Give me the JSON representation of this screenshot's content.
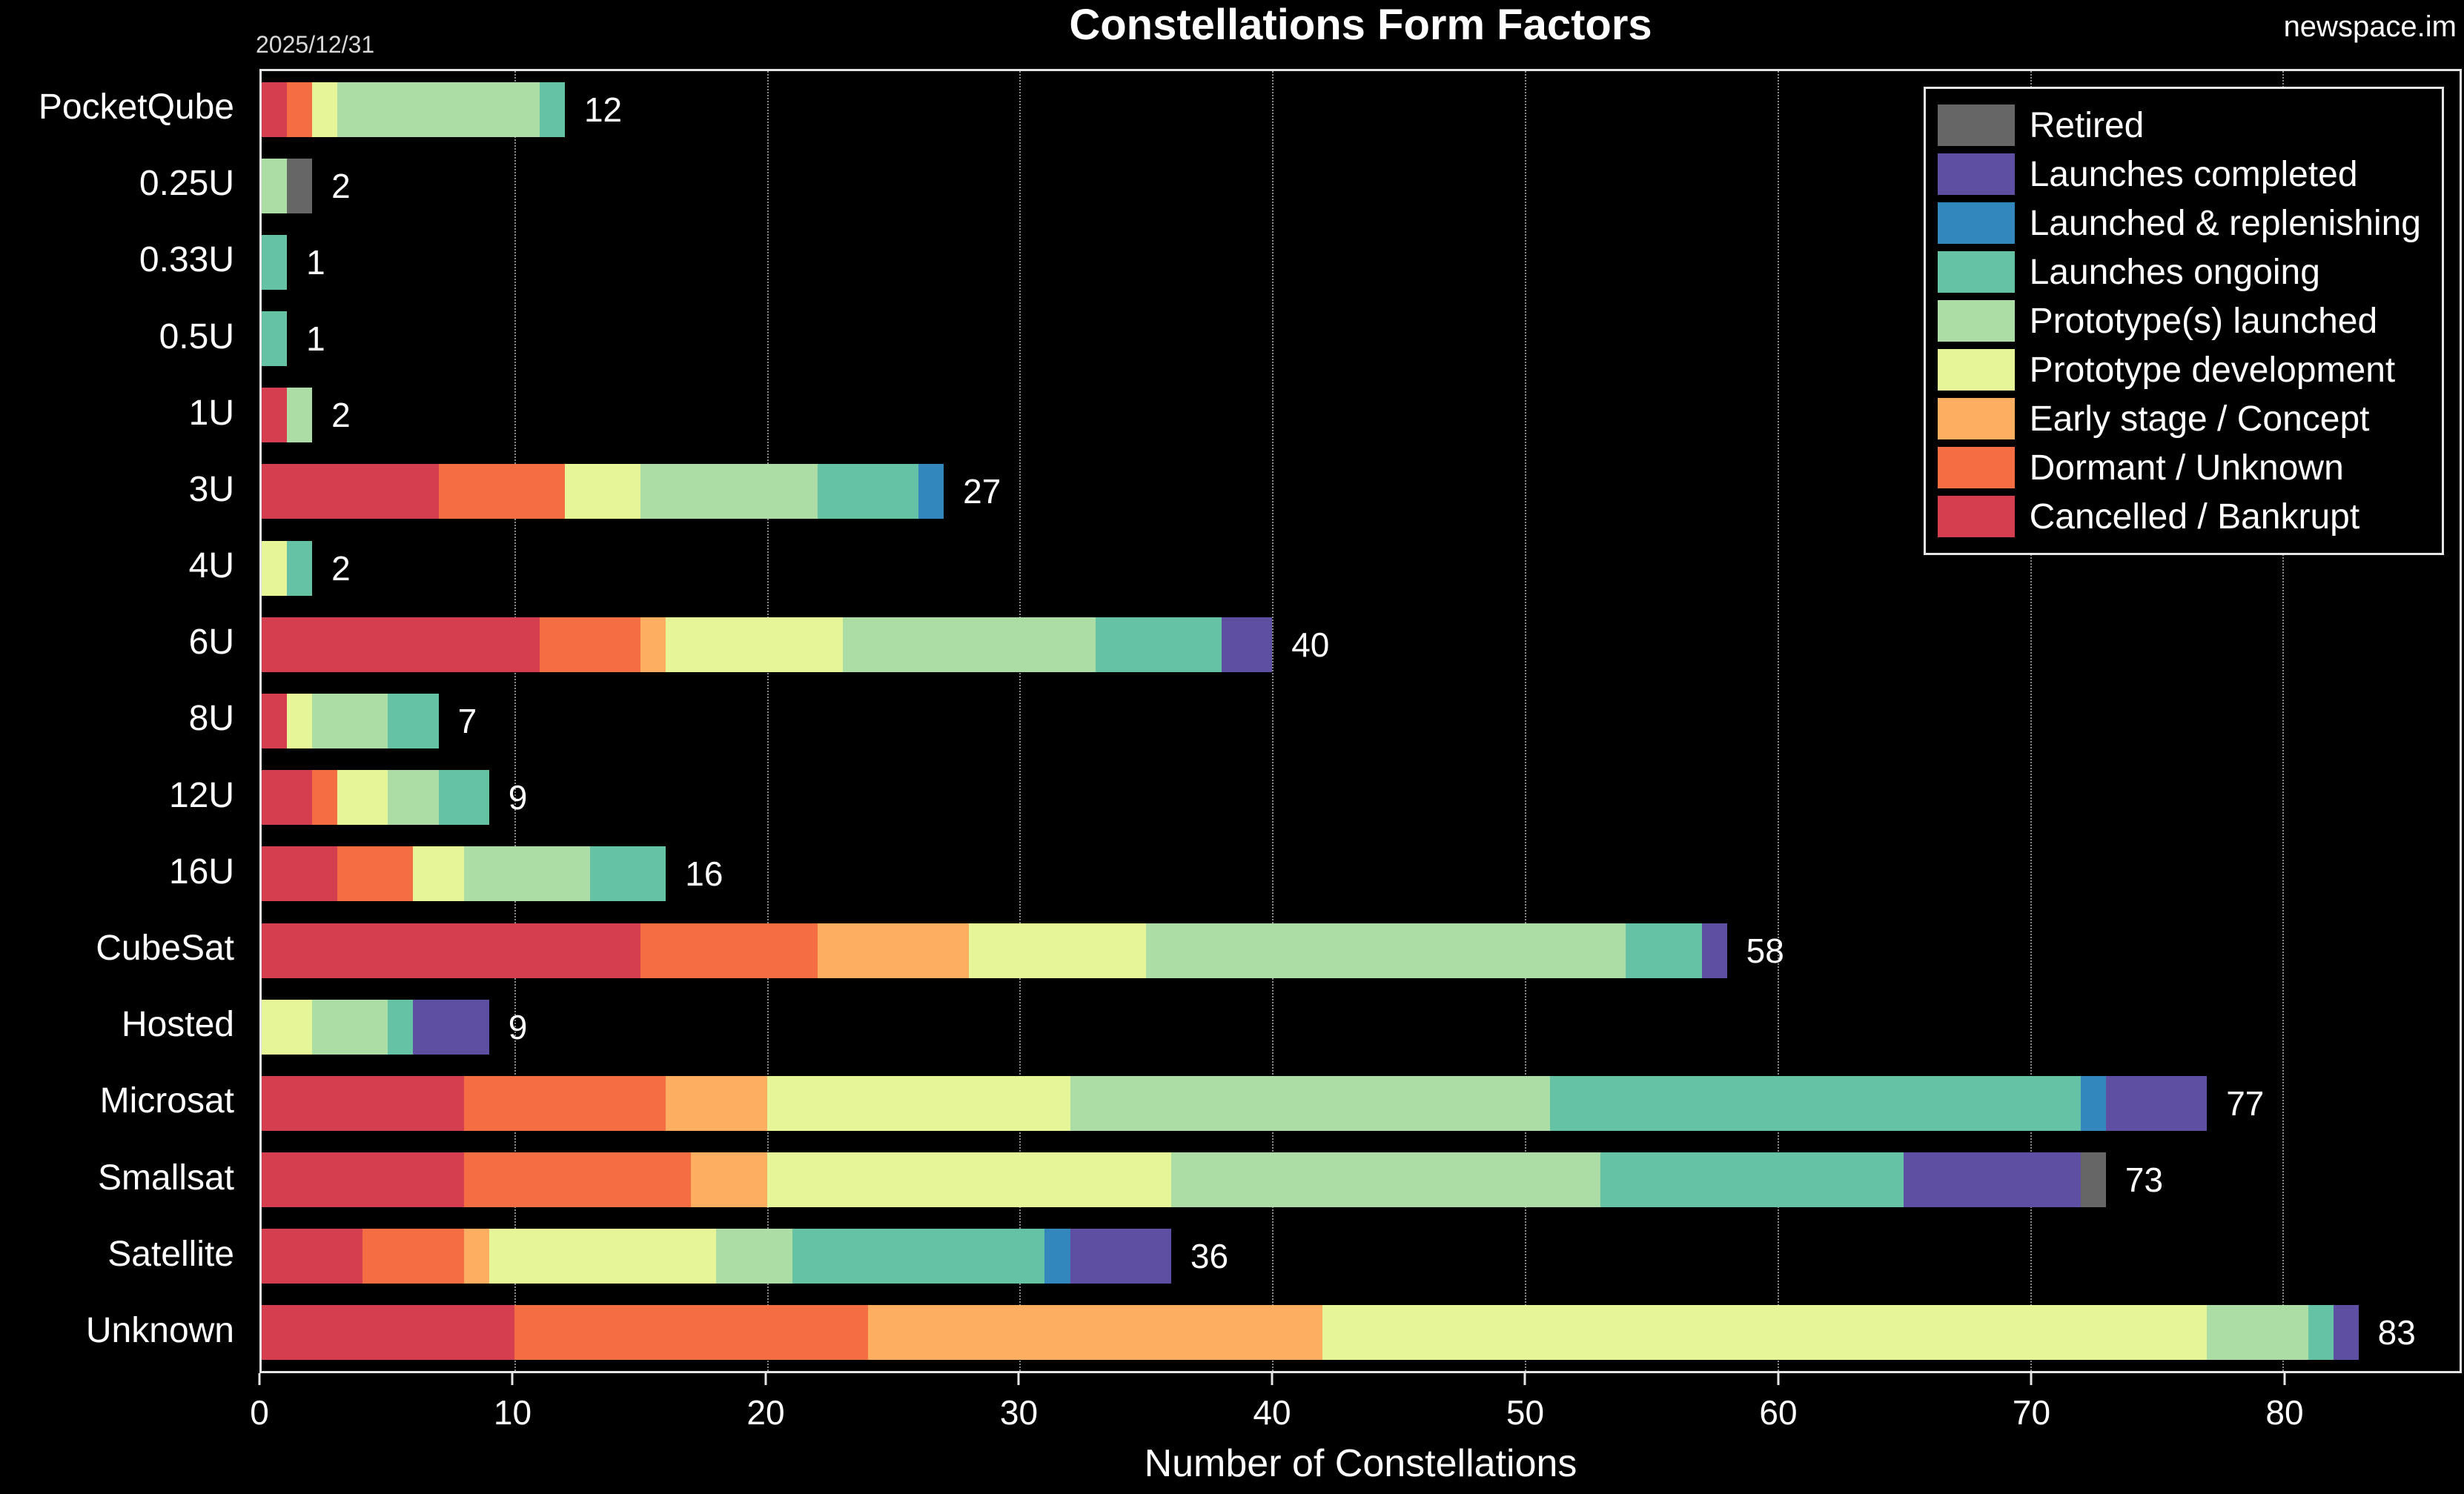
{
  "header": {
    "title": "Constellations Form Factors",
    "date": "2025/12/31",
    "brand": "newspace.im"
  },
  "legend": {
    "position": "top-right",
    "items": [
      {
        "label": "Retired",
        "color": "#666666"
      },
      {
        "label": "Launches completed",
        "color": "#5e4fa2"
      },
      {
        "label": "Launched & replenishing",
        "color": "#3288bd"
      },
      {
        "label": "Launches ongoing",
        "color": "#66c2a5"
      },
      {
        "label": "Prototype(s) launched",
        "color": "#abdda4"
      },
      {
        "label": "Prototype development",
        "color": "#e6f598"
      },
      {
        "label": "Early stage / Concept",
        "color": "#fdae61"
      },
      {
        "label": "Dormant / Unknown",
        "color": "#f46d43"
      },
      {
        "label": "Cancelled / Bankrupt",
        "color": "#d53e4f"
      }
    ]
  },
  "chart_data": {
    "type": "bar",
    "orientation": "horizontal",
    "stacked": true,
    "title": "Constellations Form Factors",
    "xlabel": "Number of Constellations",
    "xlim": [
      0,
      87
    ],
    "xticks": [
      0,
      10,
      20,
      30,
      40,
      50,
      60,
      70,
      80
    ],
    "grid": "vertical-dotted",
    "background": "#000000",
    "categories": [
      "PocketQube",
      "0.25U",
      "0.33U",
      "0.5U",
      "1U",
      "3U",
      "4U",
      "6U",
      "8U",
      "12U",
      "16U",
      "CubeSat",
      "Hosted",
      "Microsat",
      "Smallsat",
      "Satellite",
      "Unknown"
    ],
    "totals": [
      12,
      2,
      1,
      1,
      2,
      27,
      2,
      40,
      7,
      9,
      16,
      58,
      9,
      77,
      73,
      36,
      83
    ],
    "series": [
      {
        "name": "Cancelled / Bankrupt",
        "color": "#d53e4f",
        "values": [
          1,
          0,
          0,
          0,
          1,
          7,
          0,
          11,
          1,
          2,
          3,
          15,
          0,
          8,
          8,
          4,
          10
        ]
      },
      {
        "name": "Dormant / Unknown",
        "color": "#f46d43",
        "values": [
          1,
          0,
          0,
          0,
          0,
          5,
          0,
          4,
          0,
          1,
          3,
          7,
          0,
          8,
          9,
          4,
          14
        ]
      },
      {
        "name": "Early stage / Concept",
        "color": "#fdae61",
        "values": [
          0,
          0,
          0,
          0,
          0,
          0,
          0,
          1,
          0,
          0,
          0,
          6,
          0,
          4,
          3,
          1,
          18
        ]
      },
      {
        "name": "Prototype development",
        "color": "#e6f598",
        "values": [
          1,
          0,
          0,
          0,
          0,
          3,
          1,
          7,
          1,
          2,
          2,
          7,
          2,
          12,
          16,
          9,
          35
        ]
      },
      {
        "name": "Prototype(s) launched",
        "color": "#abdda4",
        "values": [
          8,
          1,
          0,
          0,
          1,
          7,
          0,
          10,
          3,
          2,
          5,
          19,
          3,
          19,
          17,
          3,
          4
        ]
      },
      {
        "name": "Launches ongoing",
        "color": "#66c2a5",
        "values": [
          1,
          0,
          1,
          1,
          0,
          4,
          1,
          5,
          2,
          2,
          3,
          3,
          1,
          21,
          12,
          10,
          1
        ]
      },
      {
        "name": "Launched & replenishing",
        "color": "#3288bd",
        "values": [
          0,
          0,
          0,
          0,
          0,
          1,
          0,
          0,
          0,
          0,
          0,
          0,
          0,
          1,
          0,
          1,
          0
        ]
      },
      {
        "name": "Launches completed",
        "color": "#5e4fa2",
        "values": [
          0,
          0,
          0,
          0,
          0,
          0,
          0,
          2,
          0,
          0,
          0,
          1,
          3,
          4,
          7,
          4,
          1
        ]
      },
      {
        "name": "Retired",
        "color": "#666666",
        "values": [
          0,
          1,
          0,
          0,
          0,
          0,
          0,
          0,
          0,
          0,
          0,
          0,
          0,
          0,
          1,
          0,
          0
        ]
      }
    ]
  }
}
